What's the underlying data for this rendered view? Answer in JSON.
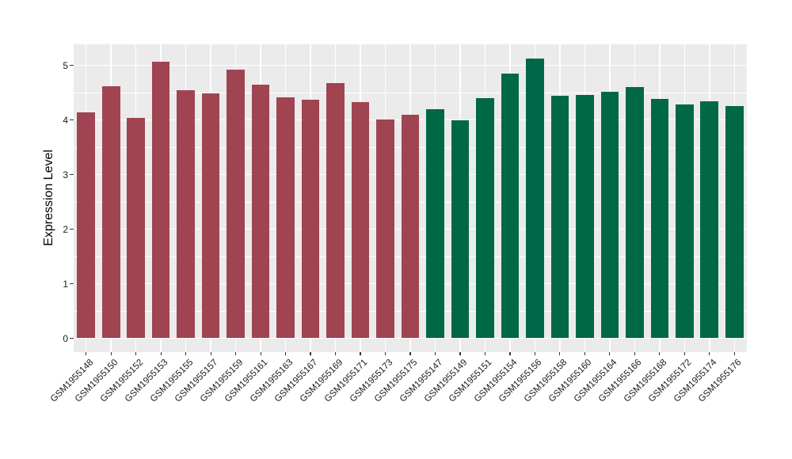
{
  "figure": {
    "background": "#ffffff",
    "panel_background": "#ebebeb",
    "grid_color": "#ffffff",
    "tick_mark_color": "#333333",
    "axis_text_color": "#1a1a1a",
    "axis_title_color": "#000000"
  },
  "chart_data": {
    "type": "bar",
    "title": "",
    "xlabel": "",
    "ylabel": "Expression Level",
    "ylim": [
      0,
      5.38
    ],
    "yticks": [
      0,
      1,
      2,
      3,
      4,
      5
    ],
    "y_minor_ticks": [
      0.5,
      1.5,
      2.5,
      3.5,
      4.5
    ],
    "grid": "on",
    "legend_position": "none",
    "bar_groups": [
      {
        "name": "left-group-dark-red",
        "color": "#a04452",
        "bars": [
          {
            "label": "GSM1955148",
            "value": 4.14
          },
          {
            "label": "GSM1955150",
            "value": 4.62
          },
          {
            "label": "GSM1955152",
            "value": 4.03
          },
          {
            "label": "GSM1955153",
            "value": 5.07
          },
          {
            "label": "GSM1955155",
            "value": 4.55
          },
          {
            "label": "GSM1955157",
            "value": 4.48
          },
          {
            "label": "GSM1955159",
            "value": 4.92
          },
          {
            "label": "GSM1955161",
            "value": 4.65
          },
          {
            "label": "GSM1955163",
            "value": 4.41
          },
          {
            "label": "GSM1955167",
            "value": 4.37
          },
          {
            "label": "GSM1955169",
            "value": 4.67
          },
          {
            "label": "GSM1955171",
            "value": 4.33
          },
          {
            "label": "GSM1955173",
            "value": 4.01
          },
          {
            "label": "GSM1955175",
            "value": 4.09
          }
        ]
      },
      {
        "name": "right-group-dark-green",
        "color": "#006847",
        "bars": [
          {
            "label": "GSM1955147",
            "value": 4.19
          },
          {
            "label": "GSM1955149",
            "value": 3.99
          },
          {
            "label": "GSM1955151",
            "value": 4.4
          },
          {
            "label": "GSM1955154",
            "value": 4.85
          },
          {
            "label": "GSM1955156",
            "value": 5.12
          },
          {
            "label": "GSM1955158",
            "value": 4.44
          },
          {
            "label": "GSM1955160",
            "value": 4.46
          },
          {
            "label": "GSM1955164",
            "value": 4.52
          },
          {
            "label": "GSM1955166",
            "value": 4.6
          },
          {
            "label": "GSM1955168",
            "value": 4.38
          },
          {
            "label": "GSM1955172",
            "value": 4.28
          },
          {
            "label": "GSM1955174",
            "value": 4.34
          },
          {
            "label": "GSM1955176",
            "value": 4.26
          }
        ]
      }
    ]
  }
}
